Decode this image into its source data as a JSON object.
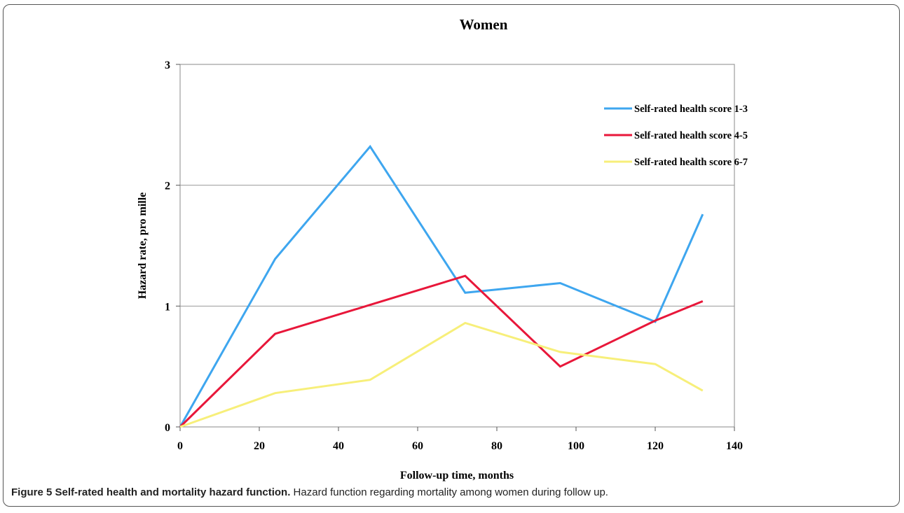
{
  "chart_data": {
    "type": "line",
    "title": "Women",
    "xlabel": "Follow-up time, months",
    "ylabel": "Hazard rate, pro mille",
    "xlim": [
      0,
      140
    ],
    "ylim": [
      0,
      3
    ],
    "x_ticks": [
      0,
      20,
      40,
      60,
      80,
      100,
      120,
      140
    ],
    "y_ticks": [
      0,
      1,
      2,
      3
    ],
    "grid": "horizontal",
    "legend_position": "top-right",
    "series": [
      {
        "name": "Self-rated health score 1-3",
        "color": "#3ea6ef",
        "x": [
          0,
          24,
          48,
          72,
          96,
          120,
          132
        ],
        "y": [
          0,
          1.39,
          2.32,
          1.11,
          1.19,
          0.87,
          1.76
        ]
      },
      {
        "name": "Self-rated health score 4-5",
        "color": "#e8173a",
        "x": [
          0,
          24,
          48,
          72,
          96,
          120,
          132
        ],
        "y": [
          0,
          0.77,
          1.01,
          1.25,
          0.5,
          0.88,
          1.04
        ]
      },
      {
        "name": "Self-rated health score 6-7",
        "color": "#f7ef7a",
        "x": [
          0,
          24,
          48,
          72,
          96,
          120,
          132
        ],
        "y": [
          0,
          0.28,
          0.39,
          0.86,
          0.62,
          0.52,
          0.3
        ]
      }
    ]
  },
  "caption": {
    "label": "Figure 5 Self-rated health and mortality hazard function.",
    "text": " Hazard function regarding mortality among women during follow up."
  }
}
